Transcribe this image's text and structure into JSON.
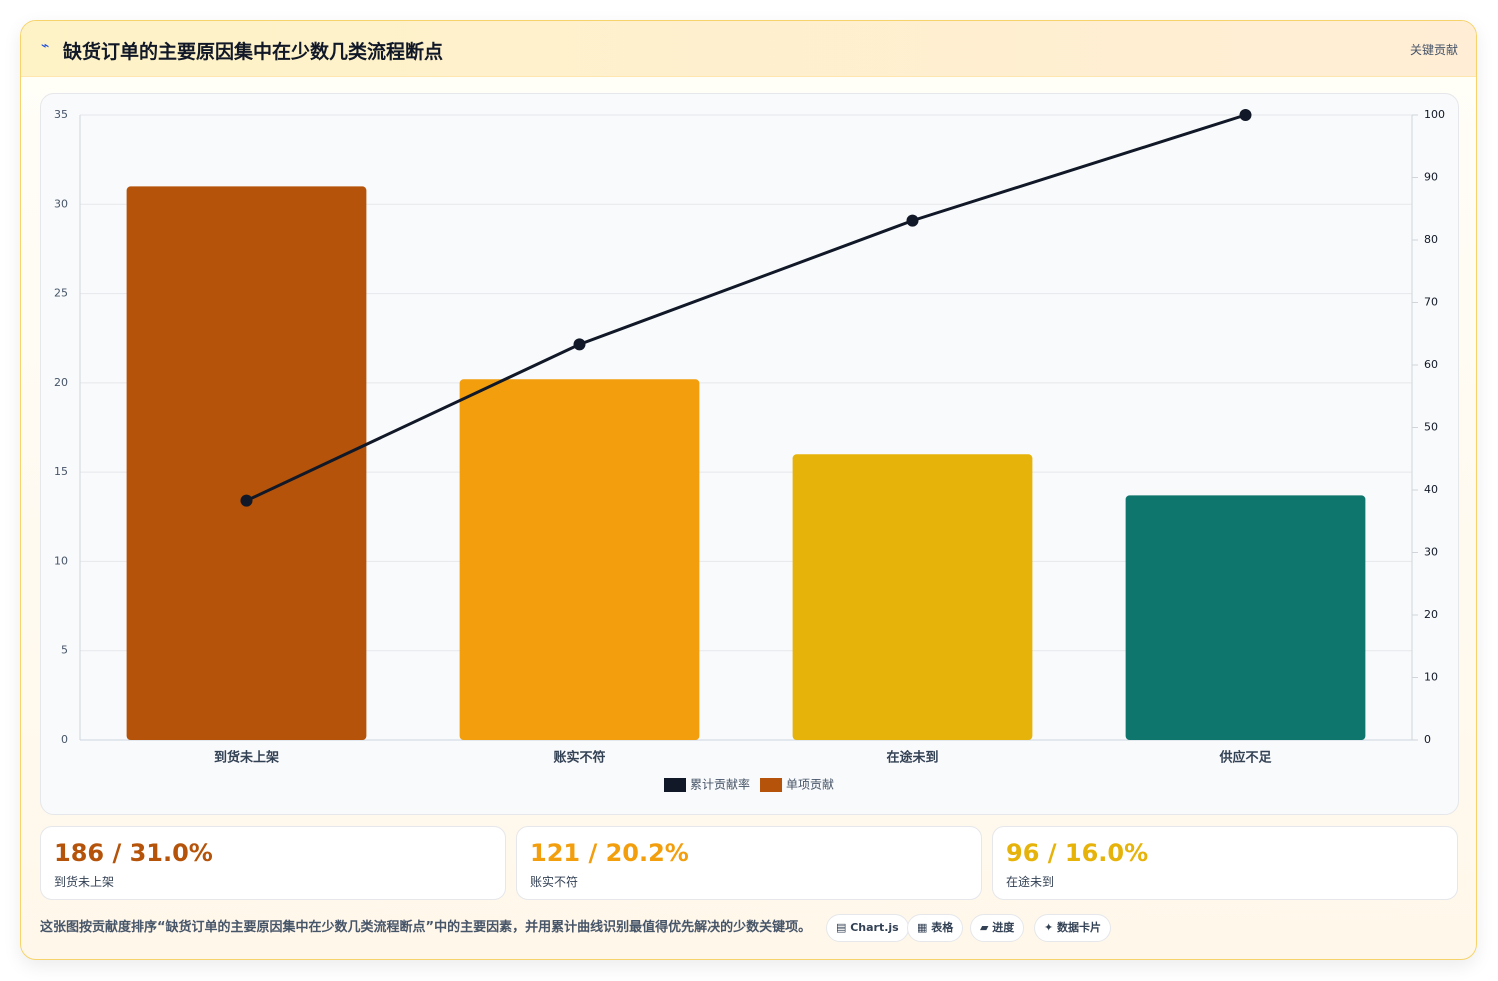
{
  "header": {
    "icon": "⌁",
    "title": "缺货订单的主要原因集中在少数几类流程断点",
    "badge": "关键贡献"
  },
  "chart_data": {
    "type": "pareto",
    "categories": [
      "到货未上架",
      "账实不符",
      "在途未到",
      "供应不足"
    ],
    "series": [
      {
        "name": "累计贡献率",
        "type": "line",
        "axis": "y2",
        "color": "#111827",
        "values": [
          38.3,
          63.3,
          83.1,
          100
        ]
      },
      {
        "name": "单项贡献",
        "type": "bar",
        "color": "#b45309",
        "colors": [
          "#b45309",
          "#f29e0d",
          "#e6b30b",
          "#0f766e"
        ],
        "values": [
          31.0,
          20.2,
          16.0,
          13.7
        ]
      }
    ],
    "ylim": [
      0,
      35
    ],
    "yticks": [
      0,
      5,
      10,
      15,
      20,
      25,
      30,
      35
    ],
    "y2lim": [
      0,
      100
    ],
    "y2ticks": [
      0,
      10,
      20,
      30,
      40,
      50,
      60,
      70,
      80,
      90,
      100
    ],
    "grid": true,
    "legend": "bottom"
  },
  "cards": [
    {
      "value": "186 / 31.0%",
      "label": "到货未上架",
      "color": "#b45309"
    },
    {
      "value": "121 / 20.2%",
      "label": "账实不符",
      "color": "#f29e0d"
    },
    {
      "value": "96 / 16.0%",
      "label": "在途未到",
      "color": "#e6b30b"
    }
  ],
  "footer": {
    "text": "这张图按贡献度排序“缺货订单的主要原因集中在少数几类流程断点”中的主要因素，并用累计曲线识别最值得优先解决的少数关键项。",
    "buttons": [
      "▤ Chart.js",
      "▦ 表格",
      "▰ 进度",
      "✦ 数据卡片"
    ]
  }
}
